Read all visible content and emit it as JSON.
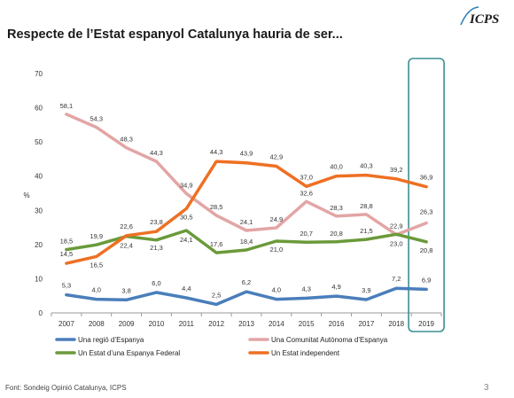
{
  "page": {
    "title": "Respecte de l’Estat espanyol Catalunya hauria de ser...",
    "source": "Font: Sondeig Opinió Catalunya, ICPS",
    "page_number": "3",
    "logo_text": "ICPS"
  },
  "chart_data": {
    "type": "line",
    "title": "Respecte de l’Estat espanyol Catalunya hauria de ser...",
    "ylabel": "%",
    "xlabel": "",
    "ylim": [
      0,
      70
    ],
    "yticks": [
      0,
      10,
      20,
      30,
      40,
      50,
      60,
      70
    ],
    "grid": false,
    "highlight_category": "2019",
    "legend_position": "bottom",
    "categories": [
      "2007",
      "2008",
      "2009",
      "2010",
      "2011",
      "2012",
      "2013",
      "2014",
      "2015",
      "2016",
      "2017",
      "2018",
      "2019"
    ],
    "series": [
      {
        "name": "Una regió d’Espanya",
        "color": "#4a7ebb",
        "values": [
          5.3,
          4.0,
          3.8,
          6.0,
          4.4,
          2.5,
          6.2,
          4.0,
          4.3,
          4.9,
          3.9,
          7.2,
          6.9
        ],
        "labels": [
          "5,3",
          "4,0",
          "3,8",
          "6,0",
          "4,4",
          "2,5",
          "6,2",
          "4,0",
          "4,3",
          "4,9",
          "3,9",
          "7,2",
          "6,9"
        ]
      },
      {
        "name": "Una Comunitat Autònoma d’Espanya",
        "color": "#e3a5a5",
        "values": [
          58.1,
          54.3,
          48.3,
          44.3,
          34.9,
          28.5,
          24.1,
          24.9,
          32.6,
          28.3,
          28.8,
          22.9,
          26.3
        ],
        "labels": [
          "58,1",
          "54,3",
          "48,3",
          "44,3",
          "34,9",
          "28,5",
          "24,1",
          "24,9",
          "32,6",
          "28,3",
          "28,8",
          "22,9",
          "26,3"
        ]
      },
      {
        "name": "Un Estat d’una Espanya Federal",
        "color": "#6a9a3a",
        "values": [
          18.5,
          19.9,
          22.4,
          21.3,
          24.1,
          17.6,
          18.4,
          21.0,
          20.7,
          20.8,
          21.5,
          23.0,
          20.8
        ],
        "labels": [
          "18,5",
          "19,9",
          "22,4",
          "21,3",
          "24,1",
          "17,6",
          "18,4",
          "21,0",
          "20,7",
          "20,8",
          "21,5",
          "23,0",
          "20,8"
        ]
      },
      {
        "name": "Un Estat independent",
        "color": "#ee7023",
        "values": [
          14.5,
          16.5,
          22.6,
          23.8,
          30.5,
          44.3,
          43.9,
          42.9,
          37.0,
          40.0,
          40.3,
          39.2,
          36.9
        ],
        "labels": [
          "14,5",
          "16,5",
          "22,6",
          "23,8",
          "30,5",
          "44,3",
          "43,9",
          "42,9",
          "37,0",
          "40,0",
          "40,3",
          "39,2",
          "36,9"
        ]
      }
    ]
  }
}
